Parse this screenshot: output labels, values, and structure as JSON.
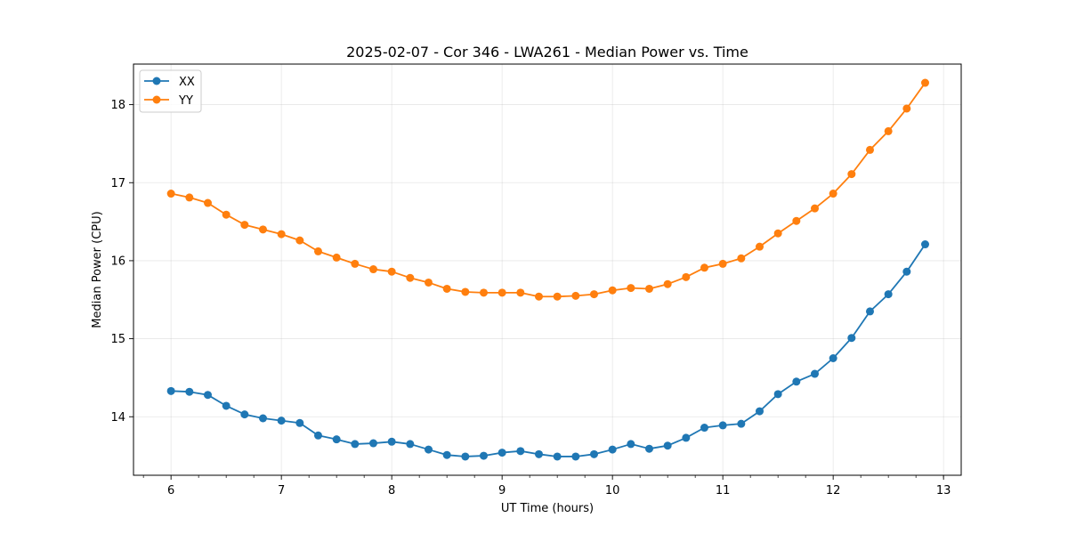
{
  "chart_data": {
    "type": "line",
    "title": "2025-02-07 - Cor 346 - LWA261 - Median Power vs. Time",
    "xlabel": "UT Time (hours)",
    "ylabel": "Median Power (CPU)",
    "xlim": [
      5.66,
      13.16
    ],
    "ylim": [
      13.25,
      18.52
    ],
    "xticks": [
      6,
      7,
      8,
      9,
      10,
      11,
      12,
      13
    ],
    "xticks_minor": [
      5.75,
      6.25,
      6.5,
      6.75,
      7.25,
      7.5,
      7.75,
      8.25,
      8.5,
      8.75,
      9.25,
      9.5,
      9.75,
      10.25,
      10.5,
      10.75,
      11.25,
      11.5,
      11.75,
      12.25,
      12.5,
      12.75,
      13.0
    ],
    "yticks": [
      14,
      15,
      16,
      17,
      18
    ],
    "grid": true,
    "legend_position": "top-left",
    "x": [
      6.0,
      6.1667,
      6.3333,
      6.5,
      6.6667,
      6.8333,
      7.0,
      7.1667,
      7.3333,
      7.5,
      7.6667,
      7.8333,
      8.0,
      8.1667,
      8.3333,
      8.5,
      8.6667,
      8.8333,
      9.0,
      9.1667,
      9.3333,
      9.5,
      9.6667,
      9.8333,
      10.0,
      10.1667,
      10.3333,
      10.5,
      10.6667,
      10.8333,
      11.0,
      11.1667,
      11.3333,
      11.5,
      11.6667,
      11.8333,
      12.0,
      12.1667,
      12.3333,
      12.5,
      12.6667,
      12.8333
    ],
    "series": [
      {
        "name": "XX",
        "color": "#1f77b4",
        "values": [
          14.33,
          14.32,
          14.28,
          14.14,
          14.03,
          13.98,
          13.95,
          13.92,
          13.76,
          13.71,
          13.65,
          13.66,
          13.68,
          13.65,
          13.58,
          13.51,
          13.49,
          13.5,
          13.54,
          13.56,
          13.52,
          13.49,
          13.49,
          13.52,
          13.58,
          13.65,
          13.59,
          13.63,
          13.73,
          13.86,
          13.89,
          13.91,
          14.07,
          14.29,
          14.45,
          14.55,
          14.75,
          15.01,
          15.35,
          15.57,
          15.86,
          16.21
        ]
      },
      {
        "name": "YY",
        "color": "#ff7f0e",
        "values": [
          16.86,
          16.81,
          16.74,
          16.59,
          16.46,
          16.4,
          16.34,
          16.26,
          16.12,
          16.04,
          15.96,
          15.89,
          15.86,
          15.78,
          15.72,
          15.64,
          15.6,
          15.59,
          15.59,
          15.59,
          15.54,
          15.54,
          15.55,
          15.57,
          15.62,
          15.65,
          15.64,
          15.7,
          15.79,
          15.91,
          15.96,
          16.03,
          16.18,
          16.35,
          16.51,
          16.67,
          16.86,
          17.11,
          17.42,
          17.66,
          17.95,
          18.28
        ]
      }
    ]
  }
}
